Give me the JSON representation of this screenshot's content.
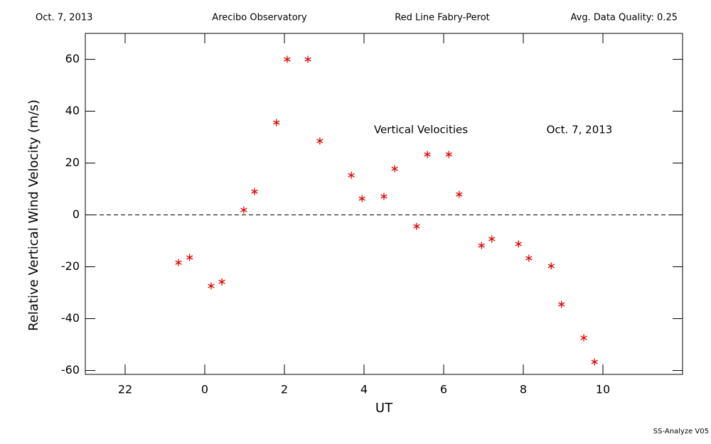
{
  "chart_data": {
    "type": "scatter",
    "header": [
      "Oct. 7, 2013",
      "Arecibo Observatory",
      "Red Line Fabry-Perot",
      "Avg. Data Quality: 0.25"
    ],
    "annotations": [
      "Vertical Velocities",
      "Oct. 7, 2013"
    ],
    "footer": "SS-Analyze V05",
    "xlabel": "UT",
    "ylabel": "Relative Vertical Wind Velocity (m/s)",
    "xlim": [
      -3,
      12
    ],
    "ylim": [
      -61.5,
      70
    ],
    "xticks": [
      {
        "value": -2,
        "label": "22"
      },
      0,
      2,
      4,
      6,
      8,
      10
    ],
    "yticks": [
      -60,
      -40,
      -20,
      0,
      20,
      40,
      60
    ],
    "reference_line": 0,
    "series": [
      {
        "color": "#e00000",
        "x": [
          -0.66,
          -0.38,
          0.16,
          0.43,
          0.98,
          1.25,
          1.8,
          2.07,
          2.59,
          2.89,
          3.68,
          3.95,
          4.5,
          4.77,
          5.32,
          5.59,
          6.13,
          6.39,
          6.95,
          7.21,
          7.88,
          8.14,
          8.7,
          8.96,
          9.52,
          9.79
        ],
        "values": [
          -18.4,
          -16.4,
          -27.4,
          -25.8,
          1.9,
          9.0,
          35.6,
          60,
          60,
          28.5,
          15.3,
          6.3,
          7.1,
          17.8,
          -4.4,
          23.3,
          23.3,
          7.9,
          -11.8,
          -9.3,
          -11.2,
          -16.7,
          -19.7,
          -34.5,
          -47.4,
          -56.7
        ]
      }
    ]
  }
}
